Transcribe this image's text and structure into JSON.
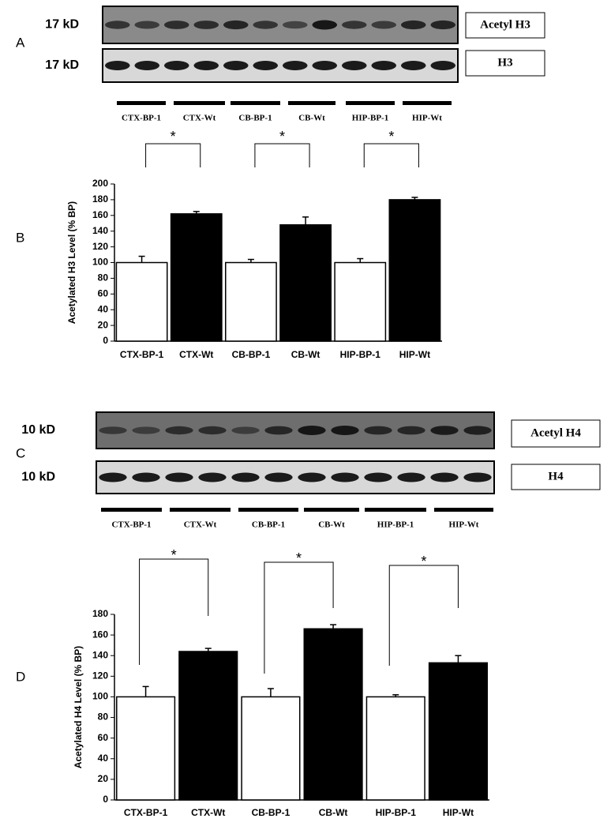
{
  "panel_labels": [
    "A",
    "B",
    "C",
    "D"
  ],
  "blots": [
    {
      "rows": [
        {
          "size": "17 kD",
          "label": "Acetyl H3"
        },
        {
          "size": "17 kD",
          "label": "H3"
        }
      ],
      "lanes": [
        "CTX-BP-1",
        "CTX-Wt",
        "CB-BP-1",
        "CB-Wt",
        "HIP-BP-1",
        "HIP-Wt"
      ]
    },
    {
      "rows": [
        {
          "size": "10 kD",
          "label": "Acetyl H4"
        },
        {
          "size": "10 kD",
          "label": "H4"
        }
      ],
      "lanes": [
        "CTX-BP-1",
        "CTX-Wt",
        "CB-BP-1",
        "CB-Wt",
        "HIP-BP-1",
        "HIP-Wt"
      ]
    }
  ],
  "chart_data": [
    {
      "type": "bar",
      "y_label": "Acetylated H3 Level  (% BP)",
      "categories": [
        "CTX-BP-1",
        "CTX-Wt",
        "CB-BP-1",
        "CB-Wt",
        "HIP-BP-1",
        "HIP-Wt"
      ],
      "values": [
        100,
        162,
        100,
        148,
        100,
        180
      ],
      "errors": [
        8,
        3,
        4,
        10,
        5,
        3
      ],
      "colors": [
        "#ffffff",
        "#000000",
        "#ffffff",
        "#000000",
        "#ffffff",
        "#000000"
      ],
      "ylim": [
        0,
        200
      ],
      "yticks": [
        0,
        20,
        40,
        60,
        80,
        100,
        120,
        140,
        160,
        180,
        200
      ],
      "annotations": [
        "*",
        "*",
        "*"
      ]
    },
    {
      "type": "bar",
      "y_label": "Acetylated H4 Level  (% BP)",
      "categories": [
        "CTX-BP-1",
        "CTX-Wt",
        "CB-BP-1",
        "CB-Wt",
        "HIP-BP-1",
        "HIP-Wt"
      ],
      "values": [
        100,
        144,
        100,
        166,
        100,
        133
      ],
      "errors": [
        10,
        3,
        8,
        4,
        2,
        7
      ],
      "colors": [
        "#ffffff",
        "#000000",
        "#ffffff",
        "#000000",
        "#ffffff",
        "#000000"
      ],
      "ylim": [
        0,
        180
      ],
      "yticks": [
        0,
        20,
        40,
        60,
        80,
        100,
        120,
        140,
        160,
        180
      ],
      "annotations": [
        "*",
        "*",
        "*"
      ]
    }
  ]
}
